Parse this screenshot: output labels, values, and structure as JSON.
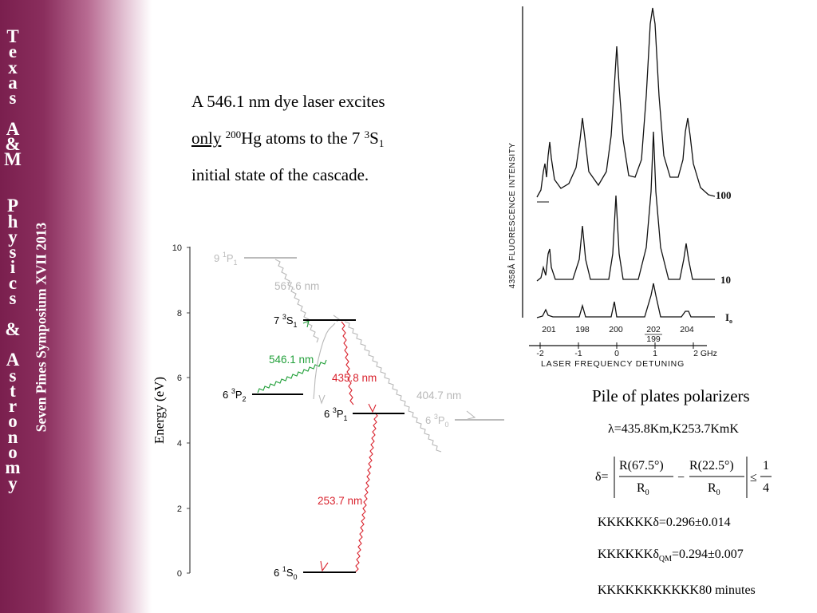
{
  "sidebar": {
    "vertical_title": "T\ne\nx\na\ns\n \nA\n&\nM\n \n \nP\nh\ny\ns\ni\nc\ns\n \n&\n \nA\ns\nt\nr\no\nn\no\nm\ny",
    "rotated_caption": "Seven Pines Symposium XVII  2013"
  },
  "intro": {
    "line1": "A 546.1 nm dye laser excites",
    "only": "only",
    "mass_number": "200",
    "element": "Hg atoms to the 7 ",
    "state_super": "3",
    "state_letter": "S",
    "state_sub": "1",
    "line3": "initial state of the cascade."
  },
  "energy_diagram": {
    "y_axis_label": "Energy  (eV)",
    "y_ticks": [
      "10",
      "8",
      "6",
      "4",
      "2",
      "0"
    ],
    "levels": [
      {
        "n": "9",
        "mult": "1",
        "letter": "P",
        "j": "1",
        "energy_ev": 9.6,
        "faded": true
      },
      {
        "n": "7",
        "mult": "3",
        "letter": "S",
        "j": "1",
        "energy_ev": 7.73,
        "faded": false
      },
      {
        "n": "6",
        "mult": "3",
        "letter": "P",
        "j": "2",
        "energy_ev": 5.46,
        "faded": false
      },
      {
        "n": "6",
        "mult": "3",
        "letter": "P",
        "j": "1",
        "energy_ev": 4.89,
        "faded": false
      },
      {
        "n": "6",
        "mult": "3",
        "letter": "P",
        "j": "0",
        "energy_ev": 4.67,
        "faded": true
      },
      {
        "n": "6",
        "mult": "1",
        "letter": "S",
        "j": "0",
        "energy_ev": 0.0,
        "faded": false
      }
    ],
    "transitions": [
      {
        "label": "567.6 nm",
        "color": "#b8b8b8"
      },
      {
        "label": "546.1 nm",
        "color": "#22a03a"
      },
      {
        "label": "435.8 nm",
        "color": "#d9232e"
      },
      {
        "label": "404.7 nm",
        "color": "#b8b8b8"
      },
      {
        "label": "253.7 nm",
        "color": "#d9232e"
      }
    ]
  },
  "spectrum": {
    "y_label": "4358Å  FLUORESCENCE  INTENSITY",
    "trace_labels": [
      "100 I",
      "10 I",
      "I"
    ],
    "isotopes": [
      "201",
      "198",
      "200",
      "202",
      "204"
    ],
    "isotope_199": "199",
    "x_ticks": [
      "-2",
      "-1",
      "0",
      "1",
      "2 GHz"
    ],
    "x_label": "LASER  FREQUENCY  DETUNING"
  },
  "polarizers": {
    "title": "Pile of plates polarizers",
    "wavelength_line": "λ=435.8Km,K253.7KmK",
    "delta_lhs": "δ=",
    "numerator_a": "R(67.5°)",
    "numerator_b": "R(22.5°)",
    "denominator": "R",
    "denominator_sub": "0",
    "minus": "−",
    "leq": "≤",
    "frac_num": "1",
    "frac_den": "4",
    "result_prefix": "KKKKKK",
    "result_measured": "δ=0.296±0.014",
    "result_qm_symbol": "δ",
    "result_qm_sub": "QM",
    "result_qm_value": "=0.294±0.007",
    "time_prefix": "KKKKKKKKKKK",
    "time_value": "80 minutes"
  }
}
